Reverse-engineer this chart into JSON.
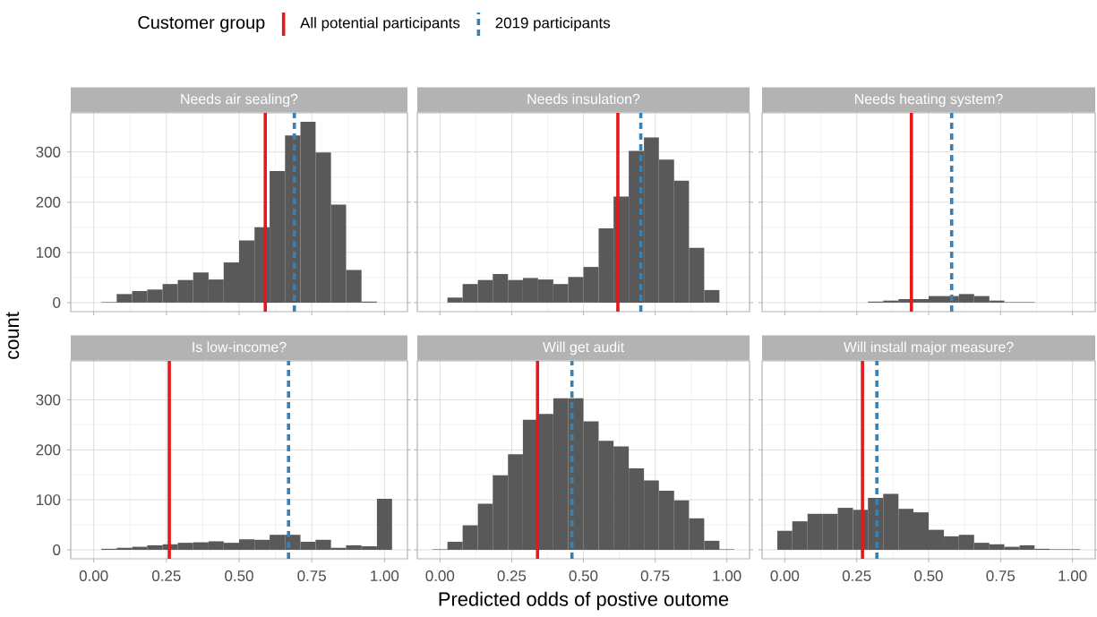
{
  "chart_data": [
    {
      "type": "histogram",
      "title": "Needs air sealing?",
      "ylabel": "count",
      "legend": "top",
      "legend_title": "Customer group",
      "color": "#595959",
      "grid": true,
      "tick_labels": "y",
      "bins": [
        -0.026,
        0.026,
        0.079,
        0.132,
        0.184,
        0.237,
        0.289,
        0.342,
        0.395,
        0.447,
        0.5,
        0.553,
        0.605,
        0.658,
        0.711,
        0.763,
        0.816,
        0.868,
        0.921,
        0.974,
        1.026
      ],
      "values": [
        0,
        1,
        17,
        23,
        26,
        37,
        45,
        60,
        46,
        80,
        124,
        150,
        262,
        333,
        360,
        299,
        195,
        65,
        2,
        0
      ],
      "xlim": [
        -0.079,
        1.079
      ],
      "ylim": [
        -18,
        378
      ],
      "xticks": [
        {
          "value": 0,
          "label": null
        },
        {
          "value": 0.25,
          "label": null
        },
        {
          "value": 0.5,
          "label": null
        },
        {
          "value": 0.75,
          "label": null
        },
        {
          "value": 1,
          "label": null
        }
      ],
      "yticks": [
        0,
        100,
        200,
        300
      ],
      "ref_lines": [
        {
          "axis": "x",
          "value": 0.59,
          "label": "All potential participants",
          "color": "#e31a1c",
          "line_style": "solid"
        },
        {
          "axis": "x",
          "value": 0.69,
          "label": "2019 participants",
          "color": "#3182bd",
          "line_style": "dashed"
        }
      ]
    },
    {
      "type": "histogram",
      "title": "Needs insulation?",
      "color": "#595959",
      "grid": true,
      "tick_labels": false,
      "bins": [
        -0.026,
        0.026,
        0.079,
        0.132,
        0.184,
        0.237,
        0.289,
        0.342,
        0.395,
        0.447,
        0.5,
        0.553,
        0.605,
        0.658,
        0.711,
        0.763,
        0.816,
        0.868,
        0.921,
        0.974,
        1.026
      ],
      "values": [
        0,
        10,
        37,
        45,
        57,
        45,
        49,
        46,
        37,
        51,
        71,
        148,
        211,
        302,
        329,
        285,
        243,
        109,
        25,
        0
      ],
      "xlim": [
        -0.079,
        1.079
      ],
      "ylim": [
        -18,
        378
      ],
      "xticks": [
        {
          "value": 0,
          "label": null
        },
        {
          "value": 0.25,
          "label": null
        },
        {
          "value": 0.5,
          "label": null
        },
        {
          "value": 0.75,
          "label": null
        },
        {
          "value": 1,
          "label": null
        }
      ],
      "yticks": [
        0,
        100,
        200,
        300
      ],
      "ref_lines": [
        {
          "axis": "x",
          "value": 0.62,
          "color": "#e31a1c",
          "line_style": "solid"
        },
        {
          "axis": "x",
          "value": 0.7,
          "color": "#3182bd",
          "line_style": "dashed"
        }
      ]
    },
    {
      "type": "histogram",
      "title": "Needs heating system?",
      "color": "#595959",
      "grid": true,
      "tick_labels": false,
      "bins": [
        -0.026,
        0.026,
        0.079,
        0.132,
        0.184,
        0.237,
        0.289,
        0.342,
        0.395,
        0.447,
        0.5,
        0.553,
        0.605,
        0.658,
        0.711,
        0.763,
        0.816,
        0.868,
        0.921,
        0.974,
        1.026
      ],
      "values": [
        0,
        0,
        0,
        0,
        0,
        0,
        2,
        4,
        7,
        7,
        13,
        13,
        17,
        13,
        4,
        1,
        1,
        0,
        0,
        0
      ],
      "xlim": [
        -0.079,
        1.079
      ],
      "ylim": [
        -18,
        378
      ],
      "xticks": [
        {
          "value": 0,
          "label": null
        },
        {
          "value": 0.25,
          "label": null
        },
        {
          "value": 0.5,
          "label": null
        },
        {
          "value": 0.75,
          "label": null
        },
        {
          "value": 1,
          "label": null
        }
      ],
      "yticks": [
        0,
        100,
        200,
        300
      ],
      "ref_lines": [
        {
          "axis": "x",
          "value": 0.44,
          "color": "#e31a1c",
          "line_style": "solid"
        },
        {
          "axis": "x",
          "value": 0.58,
          "color": "#3182bd",
          "line_style": "dashed"
        }
      ]
    },
    {
      "type": "histogram",
      "title": "Is low-income?",
      "color": "#595959",
      "grid": true,
      "bins": [
        -0.026,
        0.026,
        0.079,
        0.132,
        0.184,
        0.237,
        0.289,
        0.342,
        0.395,
        0.447,
        0.5,
        0.553,
        0.605,
        0.658,
        0.711,
        0.763,
        0.816,
        0.868,
        0.921,
        0.974,
        1.026
      ],
      "values": [
        0,
        2,
        4,
        6,
        9,
        11,
        14,
        15,
        17,
        14,
        21,
        20,
        30,
        30,
        16,
        20,
        4,
        9,
        7,
        102
      ],
      "xlim": [
        -0.079,
        1.079
      ],
      "ylim": [
        -18,
        378
      ],
      "xticks": [
        {
          "value": 0,
          "label": "0.00"
        },
        {
          "value": 0.25,
          "label": "0.25"
        },
        {
          "value": 0.5,
          "label": "0.50"
        },
        {
          "value": 0.75,
          "label": "0.75"
        },
        {
          "value": 1,
          "label": "1.00"
        }
      ],
      "yticks": [
        0,
        100,
        200,
        300
      ],
      "ref_lines": [
        {
          "axis": "x",
          "value": 0.26,
          "color": "#e31a1c",
          "line_style": "solid"
        },
        {
          "axis": "x",
          "value": 0.67,
          "color": "#3182bd",
          "line_style": "dashed"
        }
      ]
    },
    {
      "type": "histogram",
      "title": "Will get audit",
      "xlabel": "Predicted odds of postive outome",
      "color": "#595959",
      "grid": true,
      "tick_labels": "x",
      "bins": [
        -0.026,
        0.026,
        0.079,
        0.132,
        0.184,
        0.237,
        0.289,
        0.342,
        0.395,
        0.447,
        0.5,
        0.553,
        0.605,
        0.658,
        0.711,
        0.763,
        0.816,
        0.868,
        0.921,
        0.974,
        1.026
      ],
      "values": [
        1,
        16,
        49,
        92,
        149,
        191,
        260,
        272,
        303,
        303,
        257,
        218,
        207,
        163,
        139,
        118,
        99,
        63,
        18,
        1
      ],
      "xlim": [
        -0.079,
        1.079
      ],
      "ylim": [
        -18,
        378
      ],
      "xticks": [
        {
          "value": 0,
          "label": "0.00"
        },
        {
          "value": 0.25,
          "label": "0.25"
        },
        {
          "value": 0.5,
          "label": "0.50"
        },
        {
          "value": 0.75,
          "label": "0.75"
        },
        {
          "value": 1,
          "label": "1.00"
        }
      ],
      "yticks": [
        0,
        100,
        200,
        300
      ],
      "ref_lines": [
        {
          "axis": "x",
          "value": 0.34,
          "color": "#e31a1c",
          "line_style": "solid"
        },
        {
          "axis": "x",
          "value": 0.46,
          "color": "#3182bd",
          "line_style": "dashed"
        }
      ]
    },
    {
      "type": "histogram",
      "title": "Will install major measure?",
      "color": "#595959",
      "grid": true,
      "tick_labels": "x",
      "bins": [
        -0.026,
        0.026,
        0.079,
        0.132,
        0.184,
        0.237,
        0.289,
        0.342,
        0.395,
        0.447,
        0.5,
        0.553,
        0.605,
        0.658,
        0.711,
        0.763,
        0.816,
        0.868,
        0.921,
        0.974,
        1.026
      ],
      "values": [
        38,
        57,
        72,
        72,
        84,
        80,
        104,
        112,
        82,
        75,
        40,
        27,
        30,
        14,
        11,
        6,
        9,
        2,
        1,
        1
      ],
      "xlim": [
        -0.079,
        1.079
      ],
      "ylim": [
        -18,
        378
      ],
      "xticks": [
        {
          "value": 0,
          "label": "0.00"
        },
        {
          "value": 0.25,
          "label": "0.25"
        },
        {
          "value": 0.5,
          "label": "0.50"
        },
        {
          "value": 0.75,
          "label": "0.75"
        },
        {
          "value": 1,
          "label": "1.00"
        }
      ],
      "yticks": [
        0,
        100,
        200,
        300
      ],
      "ref_lines": [
        {
          "axis": "x",
          "value": 0.27,
          "color": "#e31a1c",
          "line_style": "solid"
        },
        {
          "axis": "x",
          "value": 0.32,
          "color": "#3182bd",
          "line_style": "dashed"
        }
      ]
    }
  ]
}
